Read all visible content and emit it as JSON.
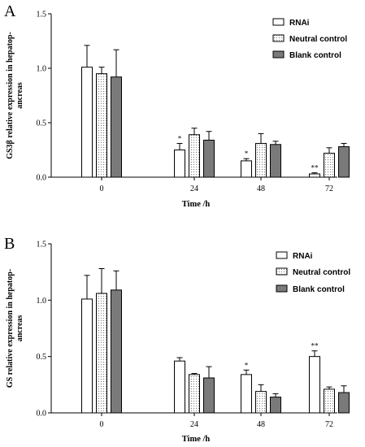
{
  "chart_data": [
    {
      "type": "bar",
      "panel": "A",
      "categories": [
        "0",
        "24",
        "48",
        "72"
      ],
      "xlabel": "Time /h",
      "ylabel_lines": [
        "GS3β relative expression in hepatop-",
        "ancreas"
      ],
      "ylim": [
        0,
        1.5
      ],
      "yticks": [
        "0.0",
        "0.5",
        "1.0",
        "1.5"
      ],
      "series": [
        {
          "name": "RNAi",
          "style": "white",
          "values": [
            1.01,
            0.25,
            0.15,
            0.03
          ],
          "errors": [
            0.2,
            0.06,
            0.02,
            0.01
          ]
        },
        {
          "name": "Neutral control",
          "style": "dotted",
          "values": [
            0.95,
            0.39,
            0.31,
            0.22
          ],
          "errors": [
            0.06,
            0.06,
            0.09,
            0.05
          ]
        },
        {
          "name": "Blank control",
          "style": "gray",
          "values": [
            0.92,
            0.34,
            0.3,
            0.28
          ],
          "errors": [
            0.25,
            0.08,
            0.03,
            0.03
          ]
        }
      ],
      "annotations": [
        {
          "category": "24",
          "series": "RNAi",
          "text": "*"
        },
        {
          "category": "48",
          "series": "RNAi",
          "text": "*"
        },
        {
          "category": "72",
          "series": "RNAi",
          "text": "**"
        }
      ],
      "legend": "top-right",
      "grid": false
    },
    {
      "type": "bar",
      "panel": "B",
      "categories": [
        "0",
        "24",
        "48",
        "72"
      ],
      "xlabel": "Time /h",
      "ylabel_lines": [
        "GS relative expression in hepatop-",
        "ancreas"
      ],
      "ylim": [
        0,
        1.5
      ],
      "yticks": [
        "0.0",
        "0.5",
        "1.0",
        "1.5"
      ],
      "series": [
        {
          "name": "RNAi",
          "style": "white",
          "values": [
            1.01,
            0.46,
            0.34,
            0.5
          ],
          "errors": [
            0.21,
            0.03,
            0.04,
            0.05
          ]
        },
        {
          "name": "Neutral control",
          "style": "dotted",
          "values": [
            1.06,
            0.34,
            0.19,
            0.21
          ],
          "errors": [
            0.22,
            0.01,
            0.06,
            0.02
          ]
        },
        {
          "name": "Blank control",
          "style": "gray",
          "values": [
            1.09,
            0.31,
            0.14,
            0.18
          ],
          "errors": [
            0.17,
            0.1,
            0.03,
            0.06
          ]
        }
      ],
      "annotations": [
        {
          "category": "48",
          "series": "RNAi",
          "text": "*"
        },
        {
          "category": "72",
          "series": "RNAi",
          "text": "**"
        }
      ],
      "legend": "top-right",
      "grid": false
    }
  ],
  "colors": {
    "white_bar": "#ffffff",
    "dotted_bar": "#ffffff",
    "gray_bar": "#7a7a7a",
    "axis": "#000000"
  }
}
